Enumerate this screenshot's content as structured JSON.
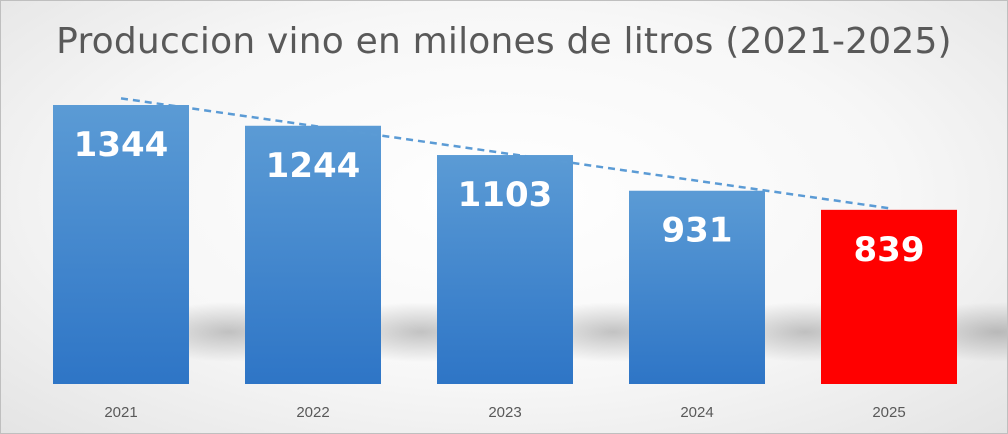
{
  "chart_data": {
    "type": "bar",
    "title": "Produccion vino en milones de litros (2021-2025)",
    "categories": [
      "2021",
      "2022",
      "2023",
      "2024",
      "2025"
    ],
    "values": [
      1344,
      1244,
      1103,
      931,
      839
    ],
    "data_labels": [
      "1344",
      "1244",
      "1103",
      "931",
      "839"
    ],
    "xlabel": "",
    "ylabel": "",
    "ylim": [
      0,
      1344
    ],
    "grid": false,
    "legend": "none",
    "trendline": {
      "type": "linear",
      "style": "dashed",
      "color": "#5b9bd5"
    },
    "colors": {
      "bar_top": "#5b9bd5",
      "bar_bottom": "#2e75c6",
      "highlight": "#ff0000",
      "highlight_category": "2025"
    }
  }
}
